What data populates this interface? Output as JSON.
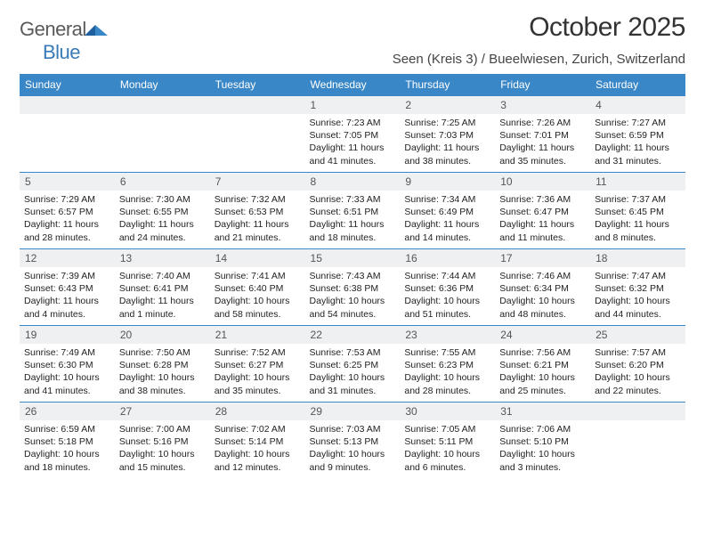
{
  "brand": {
    "name1": "General",
    "name2": "Blue"
  },
  "title": "October 2025",
  "location": "Seen (Kreis 3) / Bueelwiesen, Zurich, Switzerland",
  "colors": {
    "header_bg": "#3a87c7",
    "row_divider": "#3a87c7",
    "daynum_bg": "#eef0f1"
  },
  "weekdays": [
    "Sunday",
    "Monday",
    "Tuesday",
    "Wednesday",
    "Thursday",
    "Friday",
    "Saturday"
  ],
  "weeks": [
    [
      null,
      null,
      null,
      {
        "n": "1",
        "sr": "7:23 AM",
        "ss": "7:05 PM",
        "dl": "11 hours and 41 minutes."
      },
      {
        "n": "2",
        "sr": "7:25 AM",
        "ss": "7:03 PM",
        "dl": "11 hours and 38 minutes."
      },
      {
        "n": "3",
        "sr": "7:26 AM",
        "ss": "7:01 PM",
        "dl": "11 hours and 35 minutes."
      },
      {
        "n": "4",
        "sr": "7:27 AM",
        "ss": "6:59 PM",
        "dl": "11 hours and 31 minutes."
      }
    ],
    [
      {
        "n": "5",
        "sr": "7:29 AM",
        "ss": "6:57 PM",
        "dl": "11 hours and 28 minutes."
      },
      {
        "n": "6",
        "sr": "7:30 AM",
        "ss": "6:55 PM",
        "dl": "11 hours and 24 minutes."
      },
      {
        "n": "7",
        "sr": "7:32 AM",
        "ss": "6:53 PM",
        "dl": "11 hours and 21 minutes."
      },
      {
        "n": "8",
        "sr": "7:33 AM",
        "ss": "6:51 PM",
        "dl": "11 hours and 18 minutes."
      },
      {
        "n": "9",
        "sr": "7:34 AM",
        "ss": "6:49 PM",
        "dl": "11 hours and 14 minutes."
      },
      {
        "n": "10",
        "sr": "7:36 AM",
        "ss": "6:47 PM",
        "dl": "11 hours and 11 minutes."
      },
      {
        "n": "11",
        "sr": "7:37 AM",
        "ss": "6:45 PM",
        "dl": "11 hours and 8 minutes."
      }
    ],
    [
      {
        "n": "12",
        "sr": "7:39 AM",
        "ss": "6:43 PM",
        "dl": "11 hours and 4 minutes."
      },
      {
        "n": "13",
        "sr": "7:40 AM",
        "ss": "6:41 PM",
        "dl": "11 hours and 1 minute."
      },
      {
        "n": "14",
        "sr": "7:41 AM",
        "ss": "6:40 PM",
        "dl": "10 hours and 58 minutes."
      },
      {
        "n": "15",
        "sr": "7:43 AM",
        "ss": "6:38 PM",
        "dl": "10 hours and 54 minutes."
      },
      {
        "n": "16",
        "sr": "7:44 AM",
        "ss": "6:36 PM",
        "dl": "10 hours and 51 minutes."
      },
      {
        "n": "17",
        "sr": "7:46 AM",
        "ss": "6:34 PM",
        "dl": "10 hours and 48 minutes."
      },
      {
        "n": "18",
        "sr": "7:47 AM",
        "ss": "6:32 PM",
        "dl": "10 hours and 44 minutes."
      }
    ],
    [
      {
        "n": "19",
        "sr": "7:49 AM",
        "ss": "6:30 PM",
        "dl": "10 hours and 41 minutes."
      },
      {
        "n": "20",
        "sr": "7:50 AM",
        "ss": "6:28 PM",
        "dl": "10 hours and 38 minutes."
      },
      {
        "n": "21",
        "sr": "7:52 AM",
        "ss": "6:27 PM",
        "dl": "10 hours and 35 minutes."
      },
      {
        "n": "22",
        "sr": "7:53 AM",
        "ss": "6:25 PM",
        "dl": "10 hours and 31 minutes."
      },
      {
        "n": "23",
        "sr": "7:55 AM",
        "ss": "6:23 PM",
        "dl": "10 hours and 28 minutes."
      },
      {
        "n": "24",
        "sr": "7:56 AM",
        "ss": "6:21 PM",
        "dl": "10 hours and 25 minutes."
      },
      {
        "n": "25",
        "sr": "7:57 AM",
        "ss": "6:20 PM",
        "dl": "10 hours and 22 minutes."
      }
    ],
    [
      {
        "n": "26",
        "sr": "6:59 AM",
        "ss": "5:18 PM",
        "dl": "10 hours and 18 minutes."
      },
      {
        "n": "27",
        "sr": "7:00 AM",
        "ss": "5:16 PM",
        "dl": "10 hours and 15 minutes."
      },
      {
        "n": "28",
        "sr": "7:02 AM",
        "ss": "5:14 PM",
        "dl": "10 hours and 12 minutes."
      },
      {
        "n": "29",
        "sr": "7:03 AM",
        "ss": "5:13 PM",
        "dl": "10 hours and 9 minutes."
      },
      {
        "n": "30",
        "sr": "7:05 AM",
        "ss": "5:11 PM",
        "dl": "10 hours and 6 minutes."
      },
      {
        "n": "31",
        "sr": "7:06 AM",
        "ss": "5:10 PM",
        "dl": "10 hours and 3 minutes."
      },
      null
    ]
  ],
  "labels": {
    "sunrise": "Sunrise: ",
    "sunset": "Sunset: ",
    "daylight": "Daylight: "
  }
}
